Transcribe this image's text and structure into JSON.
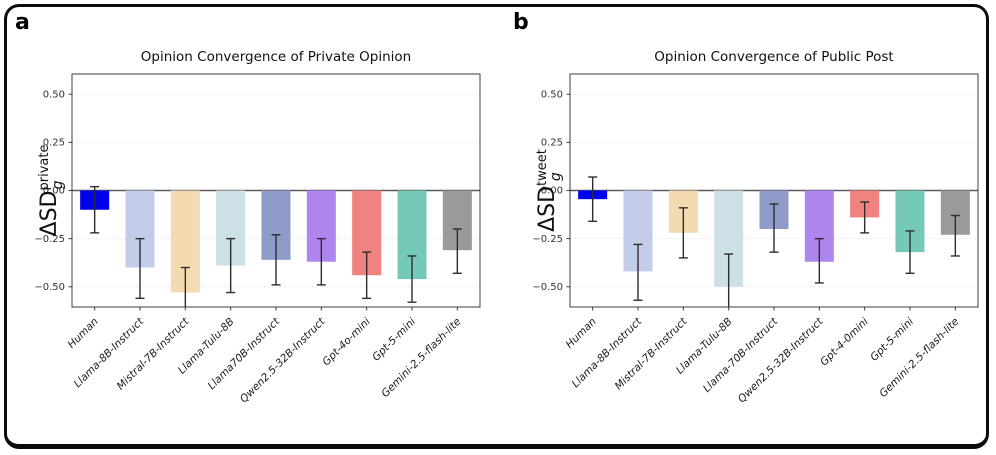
{
  "style": {
    "background_color": "#ffffff",
    "figure_border_color": "#0b0b0b",
    "error_bar_color": "#2d2d2d",
    "spine_color": "#3d3d3d",
    "grid_color": "#e0e0e0",
    "zero_line_color": "#5a5a5a",
    "tick_label_color": "#333333",
    "x_label_color": "#1a1a1a",
    "title_color": "#111111",
    "human_bar_color": "#0000ee"
  },
  "chart_data": [
    {
      "type": "bar",
      "panel_letter": "a",
      "title": "Opinion Convergence of Private Opinion",
      "ylabel": {
        "base": "ΔSD",
        "sub": "g",
        "sup": "private"
      },
      "ylim": [
        -0.605,
        0.605
      ],
      "yticks": [
        0.5,
        0.25,
        0,
        -0.25,
        -0.5
      ],
      "ytick_labels": [
        "0.50",
        "0.25",
        "0.00",
        "−0.25",
        "−0.50"
      ],
      "grid": true,
      "legend": "none",
      "categories": [
        "Human",
        "Llama-8B-Instruct",
        "Mistral-7B-Instruct",
        "Llama-Tulu-8B",
        "Llama70B-Instruct",
        "Qwen2.5-32B-Instruct",
        "Gpt-4o-mini",
        "Gpt-5-mini",
        "Gemini-2.5-flash-lite"
      ],
      "values": [
        -0.1,
        -0.4,
        -0.53,
        -0.39,
        -0.36,
        -0.37,
        -0.44,
        -0.46,
        -0.31
      ],
      "error_high": [
        0.02,
        -0.25,
        -0.4,
        -0.25,
        -0.23,
        -0.25,
        -0.32,
        -0.34,
        -0.2
      ],
      "error_low": [
        -0.22,
        -0.56,
        -0.66,
        -0.53,
        -0.49,
        -0.49,
        -0.56,
        -0.58,
        -0.43
      ],
      "bar_colors": [
        "#0000ee",
        "#c3cde9",
        "#f3dab1",
        "#cce0e6",
        "#8f9cca",
        "#ae86ee",
        "#f0837d",
        "#74cab6",
        "#9a9a9a"
      ]
    },
    {
      "type": "bar",
      "panel_letter": "b",
      "title": "Opinion Convergence of Public Post",
      "ylabel": {
        "base": "ΔSD",
        "sub": "g",
        "sup": "tweet"
      },
      "ylim": [
        -0.605,
        0.605
      ],
      "yticks": [
        0.5,
        0.25,
        0,
        -0.25,
        -0.5
      ],
      "ytick_labels": [
        "0.50",
        "0.25",
        "0.00",
        "−0.25",
        "−0.50"
      ],
      "grid": true,
      "legend": "none",
      "categories": [
        "Human",
        "Llama-8B-Instruct",
        "Mistral-7B-Instruct",
        "Llama-Tulu-8B",
        "Llama-70B-Instruct",
        "Qwen2.5-32B-Instruct",
        "Gpt-4-0mini",
        "Gpt-5-mini",
        "Gemini-2.5-flash-lite"
      ],
      "values": [
        -0.045,
        -0.42,
        -0.22,
        -0.5,
        -0.2,
        -0.37,
        -0.14,
        -0.32,
        -0.23
      ],
      "error_high": [
        0.07,
        -0.28,
        -0.09,
        -0.33,
        -0.07,
        -0.25,
        -0.06,
        -0.21,
        -0.13
      ],
      "error_low": [
        -0.16,
        -0.57,
        -0.35,
        -0.67,
        -0.32,
        -0.48,
        -0.22,
        -0.43,
        -0.34
      ],
      "bar_colors": [
        "#0000ee",
        "#c3cde9",
        "#f3dab1",
        "#cce0e6",
        "#8f9cca",
        "#ae86ee",
        "#f0837d",
        "#74cab6",
        "#9a9a9a"
      ]
    }
  ]
}
